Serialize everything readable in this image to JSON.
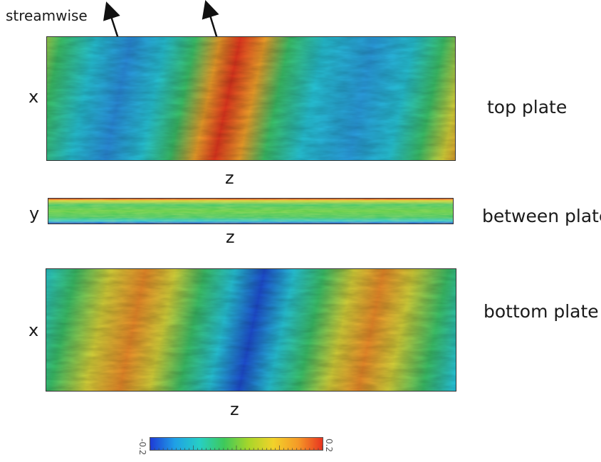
{
  "labels": {
    "streamwise": "streamwise",
    "x_top": "x",
    "z_top": "z",
    "y_mid": "y",
    "z_mid": "z",
    "x_bot": "x",
    "z_bot": "z",
    "top_plate": "top plate",
    "between_plates": "between plates",
    "bottom_plate": "bottom plate"
  },
  "colorbar": {
    "min_label": "-0.2",
    "max_label": "0.2",
    "colors": [
      "#1e3bd6",
      "#1fa0e6",
      "#27cfc4",
      "#3ec95a",
      "#a8d62a",
      "#f2d22a",
      "#f59a27",
      "#e83420"
    ]
  },
  "palette": {
    "blue": "#1e4fd6",
    "cyan": "#27c6d9",
    "green": "#3cc46a",
    "yellow": "#d8d43a",
    "orange": "#f08e2a",
    "red": "#e6371f"
  }
}
